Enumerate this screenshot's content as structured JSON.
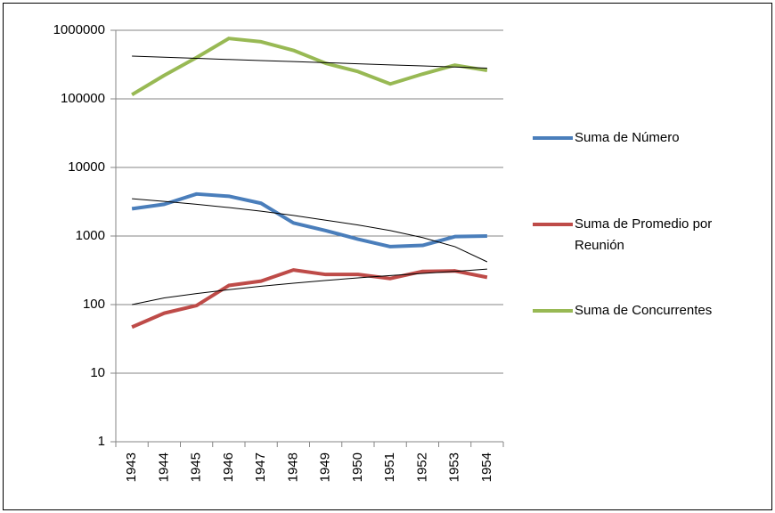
{
  "chart_data": {
    "type": "line",
    "categories": [
      "1943",
      "1944",
      "1945",
      "1946",
      "1947",
      "1948",
      "1949",
      "1950",
      "1951",
      "1952",
      "1953",
      "1954"
    ],
    "series": [
      {
        "name": "Suma de Número",
        "color": "#4a7ebb",
        "values": [
          2500,
          2900,
          4100,
          3800,
          3000,
          1550,
          1200,
          900,
          700,
          730,
          980,
          1000
        ]
      },
      {
        "name": "Suma de Promedio por Reunión",
        "color": "#be4b48",
        "values": [
          47,
          75,
          97,
          190,
          220,
          320,
          275,
          275,
          240,
          305,
          310,
          250
        ]
      },
      {
        "name": "Suma de Concurrentes",
        "color": "#98b954",
        "values": [
          115000,
          220000,
          400000,
          760000,
          680000,
          510000,
          330000,
          250000,
          165000,
          230000,
          310000,
          260000
        ]
      }
    ],
    "trendlines": [
      {
        "color": "#000000",
        "values": [
          3500,
          3200,
          2900,
          2600,
          2300,
          2000,
          1700,
          1450,
          1200,
          950,
          700,
          420
        ]
      },
      {
        "color": "#000000",
        "values": [
          100,
          125,
          145,
          165,
          185,
          205,
          225,
          245,
          265,
          285,
          305,
          330
        ]
      },
      {
        "color": "#000000",
        "values": [
          420000,
          405000,
          390000,
          375000,
          362000,
          350000,
          337000,
          325000,
          313000,
          302000,
          291000,
          281000
        ]
      }
    ],
    "ylim": [
      1,
      1000000
    ],
    "yticks": [
      1,
      10,
      100,
      1000,
      10000,
      100000,
      1000000
    ],
    "log_scale": true,
    "grid": true
  }
}
